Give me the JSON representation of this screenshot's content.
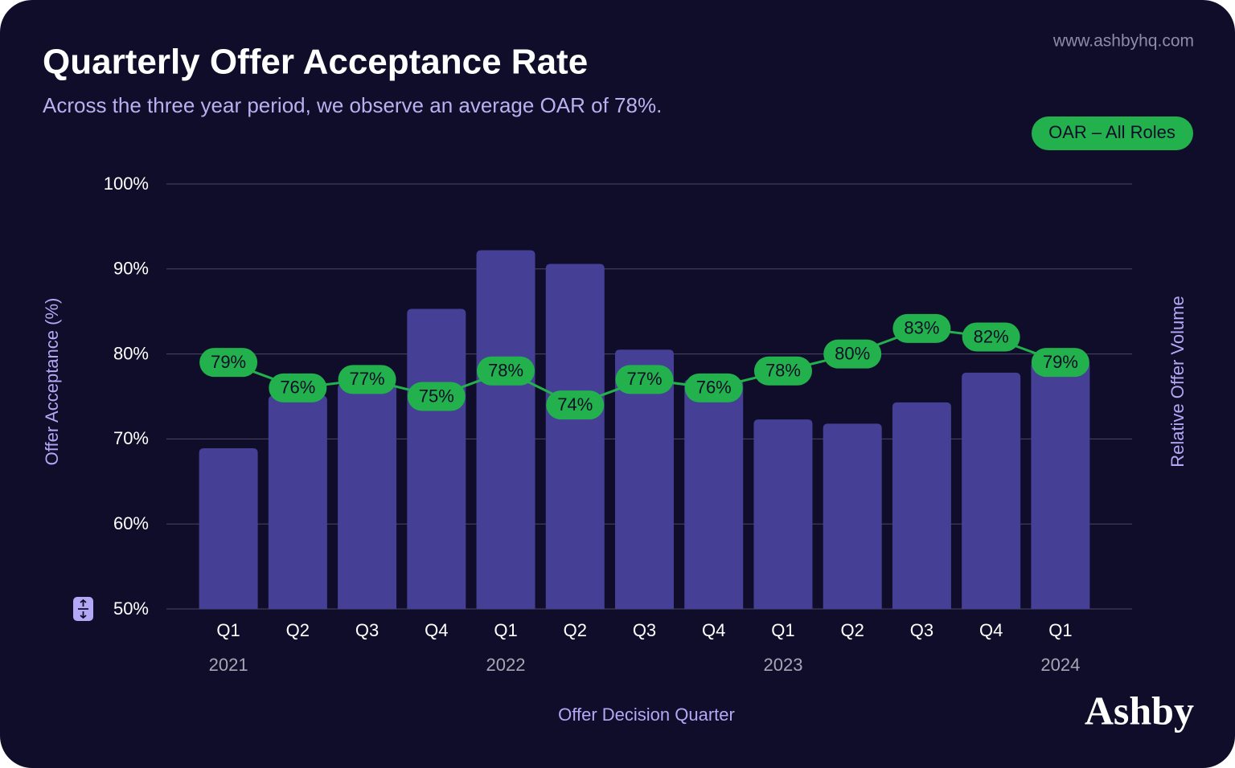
{
  "source": "www.ashbyhq.com",
  "brand": "Ashby",
  "chart_data": {
    "type": "bar",
    "title": "Quarterly Offer Acceptance Rate",
    "subtitle": "Across the three year period, we observe an average OAR of 78%.",
    "y_label": "Offer Acceptance (%)",
    "y2_label": "Relative Offer Volume",
    "x_label": "Offer Decision Quarter",
    "categories": [
      "Q1",
      "Q2",
      "Q3",
      "Q4",
      "Q1",
      "Q2",
      "Q3",
      "Q4",
      "Q1",
      "Q2",
      "Q3",
      "Q4",
      "Q1"
    ],
    "year_labels": [
      "2021",
      null,
      null,
      null,
      "2022",
      null,
      null,
      null,
      "2023",
      null,
      null,
      null,
      "2024"
    ],
    "ylim": [
      50,
      100
    ],
    "yticks": [
      {
        "value": 50,
        "label": "50%"
      },
      {
        "value": 60,
        "label": "60%"
      },
      {
        "value": 70,
        "label": "70%"
      },
      {
        "value": 80,
        "label": "80%"
      },
      {
        "value": 90,
        "label": "90%"
      },
      {
        "value": 100,
        "label": "100%"
      }
    ],
    "grid": true,
    "legend": "top-right",
    "series": [
      {
        "type": "bar",
        "color": "#463f96",
        "values": [
          68.9,
          75.1,
          76.5,
          85.3,
          92.2,
          90.6,
          80.5,
          77.0,
          72.3,
          71.8,
          74.3,
          77.8,
          79.1
        ]
      },
      {
        "type": "line",
        "name": "OAR – All Roles",
        "color": "#22b14c",
        "values": [
          79,
          76,
          77,
          75,
          78,
          74,
          77,
          76,
          78,
          80,
          83,
          82,
          79
        ],
        "value_labels": [
          "79%",
          "76%",
          "77%",
          "75%",
          "78%",
          "74%",
          "77%",
          "76%",
          "78%",
          "80%",
          "83%",
          "82%",
          "79%"
        ]
      }
    ]
  }
}
